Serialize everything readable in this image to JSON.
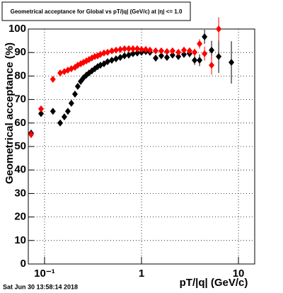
{
  "chart_data": {
    "type": "scatter",
    "title": "Geometrical acceptance for Global vs pT/|q| (GeV/c) at |η| <= 1.0",
    "x_label": "pT/|q| (GeV/c)",
    "y_label": "Geometrical acceptance (%)",
    "footer": "Sat Jun 30 13:58:14 2018",
    "x_scale": "log",
    "grid": true,
    "xlim": [
      0.068,
      14.7
    ],
    "ylim": [
      0,
      100
    ],
    "xticks": [
      {
        "value": 0.1,
        "label": "10⁻¹"
      },
      1,
      10
    ],
    "yticks": [
      0,
      10,
      20,
      30,
      40,
      50,
      60,
      70,
      80,
      90,
      100
    ],
    "series": [
      {
        "color": "#000000",
        "x": [
          0.0727,
          0.092,
          0.122,
          0.145,
          0.16,
          0.174,
          0.189,
          0.206,
          0.22,
          0.236,
          0.252,
          0.27,
          0.288,
          0.308,
          0.33,
          0.353,
          0.377,
          0.41,
          0.447,
          0.494,
          0.546,
          0.604,
          0.668,
          0.739,
          0.817,
          0.904,
          1.0,
          1.106,
          1.223,
          1.4,
          1.6,
          1.83,
          2.09,
          2.4,
          2.74,
          3.13,
          3.53,
          3.97,
          4.47,
          5.28,
          6.25,
          8.45
        ],
        "values": [
          55.7,
          64,
          65,
          60,
          62.6,
          65,
          68.4,
          72.3,
          75.6,
          77.7,
          79.2,
          80.4,
          81.3,
          82.2,
          83.1,
          84,
          84.6,
          85.2,
          86.1,
          86.7,
          87.3,
          87.9,
          88.6,
          88.9,
          89.5,
          89.8,
          90.1,
          90.4,
          90.1,
          87.6,
          88.6,
          87.9,
          88.9,
          88.3,
          89.2,
          89.5,
          86.7,
          86.7,
          96.7,
          91,
          88.3,
          85.8
        ],
        "errors": [
          1.5,
          1,
          0.8,
          0.8,
          0.7,
          0.7,
          0.6,
          0.6,
          0.5,
          0.5,
          0.5,
          0.5,
          0.4,
          0.4,
          0.4,
          0.4,
          0.4,
          0.4,
          0.4,
          0.4,
          0.4,
          0.4,
          0.4,
          0.4,
          0.4,
          0.4,
          0.4,
          0.5,
          0.5,
          0.6,
          0.7,
          0.8,
          0.9,
          1,
          1.2,
          1.5,
          2,
          2.5,
          3,
          4,
          7,
          9
        ]
      },
      {
        "color": "#ff0000",
        "x": [
          0.0727,
          0.092,
          0.122,
          0.145,
          0.16,
          0.174,
          0.189,
          0.206,
          0.22,
          0.236,
          0.252,
          0.27,
          0.288,
          0.308,
          0.33,
          0.353,
          0.377,
          0.41,
          0.447,
          0.494,
          0.546,
          0.604,
          0.668,
          0.739,
          0.817,
          0.904,
          1.0,
          1.106,
          1.223,
          1.4,
          1.6,
          1.83,
          2.09,
          2.4,
          2.74,
          3.13,
          3.53,
          3.97,
          4.47,
          5.28,
          6.25
        ],
        "values": [
          55.1,
          66,
          78.6,
          81.3,
          81.9,
          82.5,
          83.1,
          83.7,
          84.6,
          85.2,
          85.8,
          86.4,
          87,
          87.7,
          88.3,
          88.6,
          89.2,
          89.8,
          90.1,
          90.7,
          91,
          91.3,
          91.6,
          91.6,
          91.6,
          91.6,
          91.3,
          91.3,
          91,
          90.7,
          90.7,
          90.4,
          90.7,
          90.1,
          91,
          90.7,
          90.1,
          93.7,
          89.5,
          84.6,
          100
        ],
        "errors": [
          1.5,
          1,
          0.8,
          0.7,
          0.7,
          0.6,
          0.6,
          0.5,
          0.5,
          0.5,
          0.5,
          0.4,
          0.4,
          0.4,
          0.4,
          0.4,
          0.4,
          0.4,
          0.4,
          0.4,
          0.4,
          0.4,
          0.4,
          0.4,
          0.4,
          0.4,
          0.4,
          0.4,
          0.5,
          0.5,
          0.6,
          0.7,
          0.8,
          0.9,
          1,
          1.2,
          1.5,
          2,
          3,
          4,
          5
        ]
      }
    ]
  }
}
